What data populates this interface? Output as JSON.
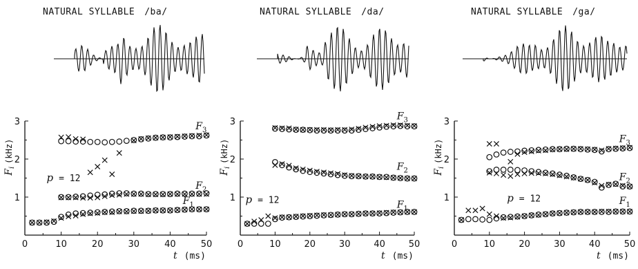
{
  "chart_data": [
    {
      "type": "scatter",
      "title": "NATURAL SYLLABLE /ba/",
      "title_main": "NATURAL SYLLABLE",
      "title_syllable": "/ba/",
      "ylabel_var": "F",
      "ylabel_sub": "i",
      "ylabel_unit": "(kHz)",
      "xlabel_var": "t",
      "xlabel_unit": "(ms)",
      "xlim": [
        0,
        50
      ],
      "ylim": [
        0,
        3
      ],
      "xticks": [
        "0",
        "10",
        "20",
        "30",
        "40",
        "50"
      ],
      "yticks": [
        "1",
        "2",
        "3"
      ],
      "annotation_var": "p",
      "annotation_value": "= 12",
      "series": [
        {
          "name": "F3",
          "marker": "circle",
          "x": [
            10,
            12,
            14,
            16,
            18,
            20,
            22,
            24,
            26,
            28,
            30,
            32,
            34,
            36,
            38,
            40,
            42,
            44,
            46,
            48,
            50
          ],
          "y": [
            2.47,
            2.47,
            2.46,
            2.46,
            2.45,
            2.45,
            2.44,
            2.45,
            2.46,
            2.48,
            2.5,
            2.52,
            2.54,
            2.56,
            2.57,
            2.57,
            2.58,
            2.59,
            2.6,
            2.6,
            2.62
          ]
        },
        {
          "name": "F3",
          "marker": "cross",
          "x": [
            10,
            12,
            14,
            16,
            30,
            32,
            34,
            36,
            38,
            40,
            42,
            44,
            46,
            48,
            50
          ],
          "y": [
            2.57,
            2.58,
            2.53,
            2.52,
            2.49,
            2.53,
            2.55,
            2.56,
            2.57,
            2.58,
            2.59,
            2.6,
            2.61,
            2.62,
            2.63
          ]
        },
        {
          "name": "cross",
          "marker": "cross",
          "x": [
            18,
            20,
            22,
            24,
            26
          ],
          "y": [
            1.65,
            1.8,
            1.97,
            1.6,
            2.16
          ]
        },
        {
          "name": "F2",
          "marker": "circle",
          "x": [
            10,
            12,
            14,
            16,
            18,
            20,
            22,
            24,
            26,
            28,
            30,
            32,
            34,
            36,
            38,
            40,
            42,
            44,
            46,
            48,
            50
          ],
          "y": [
            1.0,
            1.0,
            1.01,
            1.02,
            1.04,
            1.06,
            1.07,
            1.09,
            1.1,
            1.1,
            1.09,
            1.09,
            1.08,
            1.08,
            1.08,
            1.08,
            1.09,
            1.09,
            1.09,
            1.09,
            1.1
          ]
        },
        {
          "name": "F2",
          "marker": "cross",
          "x": [
            10,
            12,
            14,
            16,
            18,
            20,
            22,
            24,
            26,
            28,
            30,
            32,
            34,
            36,
            38,
            40,
            42,
            44,
            46,
            48,
            50
          ],
          "y": [
            0.99,
            0.99,
            0.99,
            0.98,
            0.98,
            0.99,
            1.02,
            1.05,
            1.06,
            1.08,
            1.08,
            1.08,
            1.07,
            1.07,
            1.07,
            1.08,
            1.08,
            1.08,
            1.08,
            1.08,
            1.08
          ]
        },
        {
          "name": "F1",
          "marker": "circle",
          "x": [
            2,
            4,
            6,
            8,
            10,
            12,
            14,
            16,
            18,
            20,
            22,
            24,
            26,
            28,
            30,
            32,
            34,
            36,
            38,
            40,
            42,
            44,
            46,
            48,
            50
          ],
          "y": [
            0.33,
            0.33,
            0.33,
            0.35,
            0.48,
            0.54,
            0.57,
            0.58,
            0.59,
            0.6,
            0.61,
            0.62,
            0.63,
            0.63,
            0.64,
            0.64,
            0.64,
            0.65,
            0.65,
            0.65,
            0.66,
            0.67,
            0.68,
            0.68,
            0.68
          ]
        },
        {
          "name": "F1",
          "marker": "cross",
          "x": [
            2,
            4,
            6,
            8,
            10,
            12,
            14,
            16,
            18,
            20,
            22,
            24,
            26,
            28,
            30,
            32,
            34,
            36,
            38,
            40,
            42,
            44,
            46,
            48,
            50
          ],
          "y": [
            0.33,
            0.33,
            0.34,
            0.37,
            0.45,
            0.49,
            0.51,
            0.55,
            0.57,
            0.58,
            0.6,
            0.6,
            0.62,
            0.62,
            0.63,
            0.63,
            0.64,
            0.65,
            0.65,
            0.65,
            0.66,
            0.67,
            0.68,
            0.68,
            0.68
          ]
        }
      ],
      "formant_labels": [
        {
          "var": "F",
          "sub": "3",
          "x": 47,
          "y": 2.78
        },
        {
          "var": "F",
          "sub": "2",
          "x": 47,
          "y": 1.22
        },
        {
          "var": "F",
          "sub": "1",
          "x": 43.5,
          "y": 0.82
        }
      ],
      "annotation_pos": {
        "x": 6,
        "y": 1.42
      }
    },
    {
      "type": "scatter",
      "title": "NATURAL SYLLABLE /da/",
      "title_main": "NATURAL SYLLABLE",
      "title_syllable": "/da/",
      "ylabel_var": "F",
      "ylabel_sub": "i",
      "ylabel_unit": "(kHz)",
      "xlabel_var": "t",
      "xlabel_unit": "(ms)",
      "xlim": [
        0,
        50
      ],
      "ylim": [
        0,
        3
      ],
      "xticks": [
        "0",
        "10",
        "20",
        "30",
        "40",
        "50"
      ],
      "yticks": [
        "1",
        "2",
        "3"
      ],
      "annotation_var": "p",
      "annotation_value": "= 12",
      "series": [
        {
          "name": "F3",
          "marker": "circle",
          "x": [
            10,
            12,
            14,
            16,
            18,
            20,
            22,
            24,
            26,
            28,
            30,
            32,
            34,
            36,
            38,
            40,
            42,
            44,
            46,
            48,
            50
          ],
          "y": [
            2.8,
            2.79,
            2.78,
            2.77,
            2.77,
            2.76,
            2.75,
            2.75,
            2.75,
            2.75,
            2.75,
            2.75,
            2.77,
            2.79,
            2.81,
            2.83,
            2.85,
            2.86,
            2.87,
            2.86,
            2.86
          ]
        },
        {
          "name": "F3",
          "marker": "cross",
          "x": [
            10,
            12,
            14,
            16,
            18,
            20,
            22,
            24,
            26,
            28,
            30,
            32,
            34,
            36,
            38,
            40,
            42,
            44,
            46,
            48,
            50
          ],
          "y": [
            2.82,
            2.81,
            2.81,
            2.78,
            2.77,
            2.77,
            2.77,
            2.77,
            2.76,
            2.77,
            2.77,
            2.78,
            2.8,
            2.83,
            2.85,
            2.87,
            2.88,
            2.89,
            2.89,
            2.88,
            2.87
          ]
        },
        {
          "name": "F2",
          "marker": "circle",
          "x": [
            10,
            12,
            14,
            16,
            18,
            20,
            22,
            24,
            26,
            28,
            30,
            32,
            34,
            36,
            38,
            40,
            42,
            44,
            46,
            48,
            50
          ],
          "y": [
            1.92,
            1.84,
            1.78,
            1.73,
            1.69,
            1.66,
            1.64,
            1.62,
            1.6,
            1.58,
            1.56,
            1.55,
            1.55,
            1.54,
            1.54,
            1.53,
            1.53,
            1.51,
            1.5,
            1.49,
            1.49
          ]
        },
        {
          "name": "F2",
          "marker": "cross",
          "x": [
            10,
            12,
            14,
            16,
            18,
            20,
            22,
            24,
            26,
            28,
            30,
            32,
            34,
            36,
            38,
            40,
            42,
            44,
            46,
            48,
            50
          ],
          "y": [
            1.84,
            1.87,
            1.83,
            1.76,
            1.73,
            1.7,
            1.67,
            1.65,
            1.63,
            1.61,
            1.58,
            1.56,
            1.55,
            1.54,
            1.54,
            1.53,
            1.52,
            1.51,
            1.5,
            1.49,
            1.49
          ]
        },
        {
          "name": "F1",
          "marker": "circle",
          "x": [
            2,
            4,
            6,
            8,
            10,
            12,
            14,
            16,
            18,
            20,
            22,
            24,
            26,
            28,
            30,
            32,
            34,
            36,
            38,
            40,
            42,
            44,
            46,
            48,
            50
          ],
          "y": [
            0.3,
            0.3,
            0.3,
            0.3,
            0.42,
            0.46,
            0.47,
            0.48,
            0.49,
            0.5,
            0.51,
            0.52,
            0.53,
            0.54,
            0.55,
            0.55,
            0.56,
            0.57,
            0.57,
            0.57,
            0.58,
            0.59,
            0.6,
            0.61,
            0.61
          ]
        },
        {
          "name": "F1",
          "marker": "cross",
          "x": [
            2,
            4,
            6,
            8,
            10,
            12,
            14,
            16,
            18,
            20,
            22,
            24,
            26,
            28,
            30,
            32,
            34,
            36,
            38,
            40,
            42,
            44,
            46,
            48,
            50
          ],
          "y": [
            0.3,
            0.36,
            0.4,
            0.5,
            0.45,
            0.47,
            0.47,
            0.49,
            0.5,
            0.51,
            0.52,
            0.53,
            0.53,
            0.54,
            0.55,
            0.55,
            0.56,
            0.57,
            0.57,
            0.58,
            0.59,
            0.6,
            0.6,
            0.61,
            0.61
          ]
        }
      ],
      "formant_labels": [
        {
          "var": "F",
          "sub": "3",
          "x": 45,
          "y": 3.05
        },
        {
          "var": "F",
          "sub": "2",
          "x": 45,
          "y": 1.72
        },
        {
          "var": "F",
          "sub": "1",
          "x": 45,
          "y": 0.72
        }
      ],
      "annotation_pos": {
        "x": 1.5,
        "y": 0.85
      }
    },
    {
      "type": "scatter",
      "title": "NATURAL SYLLABLE /ga/",
      "title_main": "NATURAL SYLLABLE",
      "title_syllable": "/ga/",
      "ylabel_var": "F",
      "ylabel_sub": "i",
      "ylabel_unit": "(kHz)",
      "xlabel_var": "t",
      "xlabel_unit": "(ms)",
      "xlim": [
        0,
        50
      ],
      "ylim": [
        0,
        3
      ],
      "xticks": [
        "0",
        "10",
        "20",
        "30",
        "40",
        "50"
      ],
      "yticks": [
        "1",
        "2",
        "3"
      ],
      "annotation_var": "p",
      "annotation_value": "= 12",
      "series": [
        {
          "name": "F3",
          "marker": "circle",
          "x": [
            10,
            12,
            14,
            16,
            18,
            20,
            22,
            24,
            26,
            28,
            30,
            32,
            34,
            36,
            38,
            40,
            42,
            44,
            46,
            48,
            50
          ],
          "y": [
            2.05,
            2.12,
            2.17,
            2.19,
            2.2,
            2.22,
            2.23,
            2.24,
            2.25,
            2.26,
            2.26,
            2.27,
            2.27,
            2.26,
            2.25,
            2.24,
            2.2,
            2.26,
            2.27,
            2.28,
            2.29
          ]
        },
        {
          "name": "F3",
          "marker": "cross",
          "x": [
            10,
            12,
            16,
            18,
            20,
            22,
            24,
            26,
            28,
            30,
            32,
            34,
            36,
            38,
            40,
            42,
            44,
            46,
            48,
            50
          ],
          "y": [
            2.4,
            2.4,
            1.93,
            2.13,
            2.18,
            2.2,
            2.22,
            2.23,
            2.25,
            2.26,
            2.26,
            2.27,
            2.27,
            2.26,
            2.25,
            2.23,
            2.27,
            2.28,
            2.29,
            2.3
          ]
        },
        {
          "name": "F2",
          "marker": "circle",
          "x": [
            10,
            12,
            14,
            16,
            18,
            20,
            22,
            24,
            26,
            28,
            30,
            32,
            34,
            36,
            38,
            40,
            42,
            44,
            46,
            48,
            50
          ],
          "y": [
            1.68,
            1.72,
            1.72,
            1.72,
            1.71,
            1.7,
            1.68,
            1.66,
            1.64,
            1.62,
            1.59,
            1.56,
            1.52,
            1.48,
            1.45,
            1.4,
            1.25,
            1.32,
            1.35,
            1.28,
            1.28
          ]
        },
        {
          "name": "F2",
          "marker": "cross",
          "x": [
            10,
            12,
            14,
            16,
            18,
            20,
            22,
            24,
            26,
            28,
            30,
            32,
            34,
            36,
            38,
            40,
            42,
            44,
            46,
            48,
            50
          ],
          "y": [
            1.64,
            1.62,
            1.58,
            1.55,
            1.6,
            1.62,
            1.63,
            1.63,
            1.62,
            1.6,
            1.57,
            1.54,
            1.51,
            1.48,
            1.45,
            1.38,
            1.3,
            1.33,
            1.34,
            1.3,
            1.28
          ]
        },
        {
          "name": "F1",
          "marker": "circle",
          "x": [
            2,
            4,
            6,
            8,
            10,
            12,
            14,
            16,
            18,
            20,
            22,
            24,
            26,
            28,
            30,
            32,
            34,
            36,
            38,
            40,
            42,
            44,
            46,
            48,
            50
          ],
          "y": [
            0.4,
            0.42,
            0.42,
            0.41,
            0.4,
            0.44,
            0.47,
            0.48,
            0.49,
            0.5,
            0.52,
            0.54,
            0.55,
            0.57,
            0.58,
            0.59,
            0.6,
            0.61,
            0.61,
            0.61,
            0.61,
            0.61,
            0.62,
            0.62,
            0.62
          ]
        },
        {
          "name": "F1",
          "marker": "cross",
          "x": [
            2,
            4,
            6,
            8,
            10,
            12,
            14,
            16,
            18,
            20,
            22,
            24,
            26,
            28,
            30,
            32,
            34,
            36,
            38,
            40,
            42,
            44,
            46,
            48,
            50
          ],
          "y": [
            0.4,
            0.65,
            0.65,
            0.7,
            0.55,
            0.5,
            0.45,
            0.46,
            0.48,
            0.5,
            0.52,
            0.53,
            0.55,
            0.57,
            0.58,
            0.59,
            0.6,
            0.61,
            0.61,
            0.61,
            0.62,
            0.62,
            0.62,
            0.62,
            0.62
          ]
        }
      ],
      "formant_labels": [
        {
          "var": "F",
          "sub": "3",
          "x": 47,
          "y": 2.45
        },
        {
          "var": "F",
          "sub": "2",
          "x": 47,
          "y": 1.45
        },
        {
          "var": "F",
          "sub": "1",
          "x": 47,
          "y": 0.82
        }
      ],
      "annotation_pos": {
        "x": 15,
        "y": 0.88
      }
    }
  ]
}
